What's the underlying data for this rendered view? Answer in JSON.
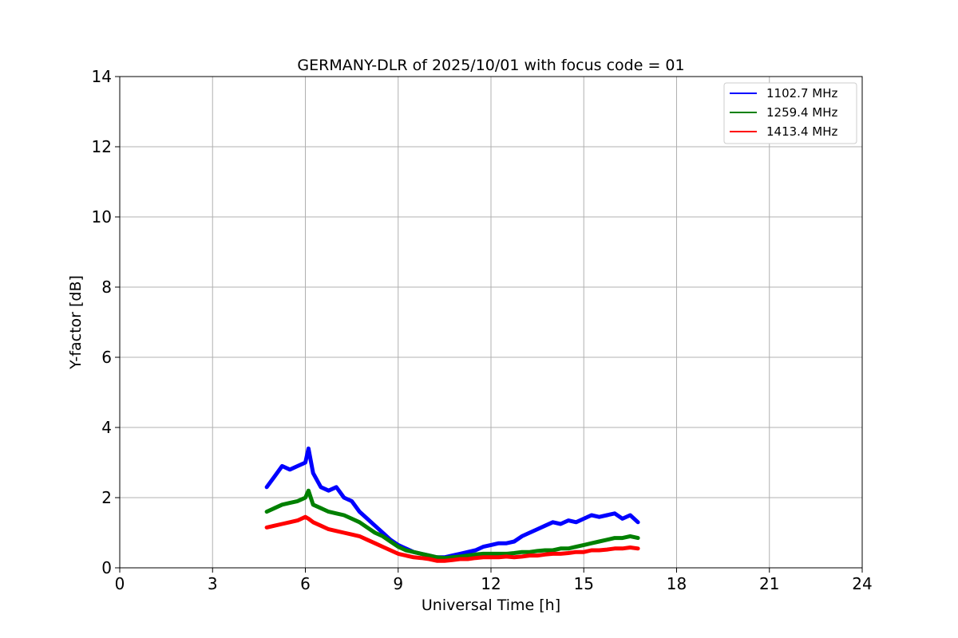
{
  "chart_data": {
    "type": "line",
    "title": "GERMANY-DLR of 2025/10/01 with focus code = 01",
    "xlabel": "Universal Time [h]",
    "ylabel": "Y-factor [dB]",
    "xlim": [
      0,
      24
    ],
    "ylim": [
      0,
      14
    ],
    "xticks": [
      0,
      3,
      6,
      9,
      12,
      15,
      18,
      21,
      24
    ],
    "yticks": [
      0,
      2,
      4,
      6,
      8,
      10,
      12,
      14
    ],
    "grid": true,
    "legend_position": "top-right",
    "x": [
      4.75,
      5.0,
      5.25,
      5.5,
      5.75,
      6.0,
      6.1,
      6.25,
      6.5,
      6.75,
      7.0,
      7.25,
      7.5,
      7.75,
      8.0,
      8.25,
      8.5,
      8.75,
      9.0,
      9.25,
      9.5,
      9.75,
      10.0,
      10.25,
      10.5,
      10.75,
      11.0,
      11.25,
      11.5,
      11.75,
      12.0,
      12.25,
      12.5,
      12.75,
      13.0,
      13.25,
      13.5,
      13.75,
      14.0,
      14.25,
      14.5,
      14.75,
      15.0,
      15.25,
      15.5,
      15.75,
      16.0,
      16.25,
      16.5,
      16.75
    ],
    "series": [
      {
        "name": "1102.7 MHz",
        "color": "#0000ff",
        "values": [
          2.3,
          2.6,
          2.9,
          2.8,
          2.9,
          3.0,
          3.4,
          2.7,
          2.3,
          2.2,
          2.3,
          2.0,
          1.9,
          1.6,
          1.4,
          1.2,
          1.0,
          0.8,
          0.65,
          0.55,
          0.45,
          0.4,
          0.35,
          0.3,
          0.3,
          0.35,
          0.4,
          0.45,
          0.5,
          0.6,
          0.65,
          0.7,
          0.7,
          0.75,
          0.9,
          1.0,
          1.1,
          1.2,
          1.3,
          1.25,
          1.35,
          1.3,
          1.4,
          1.5,
          1.45,
          1.5,
          1.55,
          1.4,
          1.5,
          1.3
        ]
      },
      {
        "name": "1259.4 MHz",
        "color": "#008000",
        "values": [
          1.6,
          1.7,
          1.8,
          1.85,
          1.9,
          2.0,
          2.2,
          1.8,
          1.7,
          1.6,
          1.55,
          1.5,
          1.4,
          1.3,
          1.15,
          1.0,
          0.9,
          0.75,
          0.6,
          0.5,
          0.45,
          0.4,
          0.35,
          0.3,
          0.28,
          0.3,
          0.32,
          0.35,
          0.38,
          0.4,
          0.4,
          0.4,
          0.4,
          0.42,
          0.45,
          0.45,
          0.48,
          0.5,
          0.5,
          0.55,
          0.55,
          0.6,
          0.65,
          0.7,
          0.75,
          0.8,
          0.85,
          0.85,
          0.9,
          0.85
        ]
      },
      {
        "name": "1413.4 MHz",
        "color": "#ff0000",
        "values": [
          1.15,
          1.2,
          1.25,
          1.3,
          1.35,
          1.45,
          1.4,
          1.3,
          1.2,
          1.1,
          1.05,
          1.0,
          0.95,
          0.9,
          0.8,
          0.7,
          0.6,
          0.5,
          0.4,
          0.35,
          0.3,
          0.28,
          0.25,
          0.2,
          0.2,
          0.22,
          0.25,
          0.25,
          0.28,
          0.3,
          0.3,
          0.3,
          0.32,
          0.3,
          0.32,
          0.35,
          0.35,
          0.38,
          0.4,
          0.4,
          0.42,
          0.45,
          0.45,
          0.5,
          0.5,
          0.52,
          0.55,
          0.55,
          0.58,
          0.55
        ]
      }
    ]
  }
}
